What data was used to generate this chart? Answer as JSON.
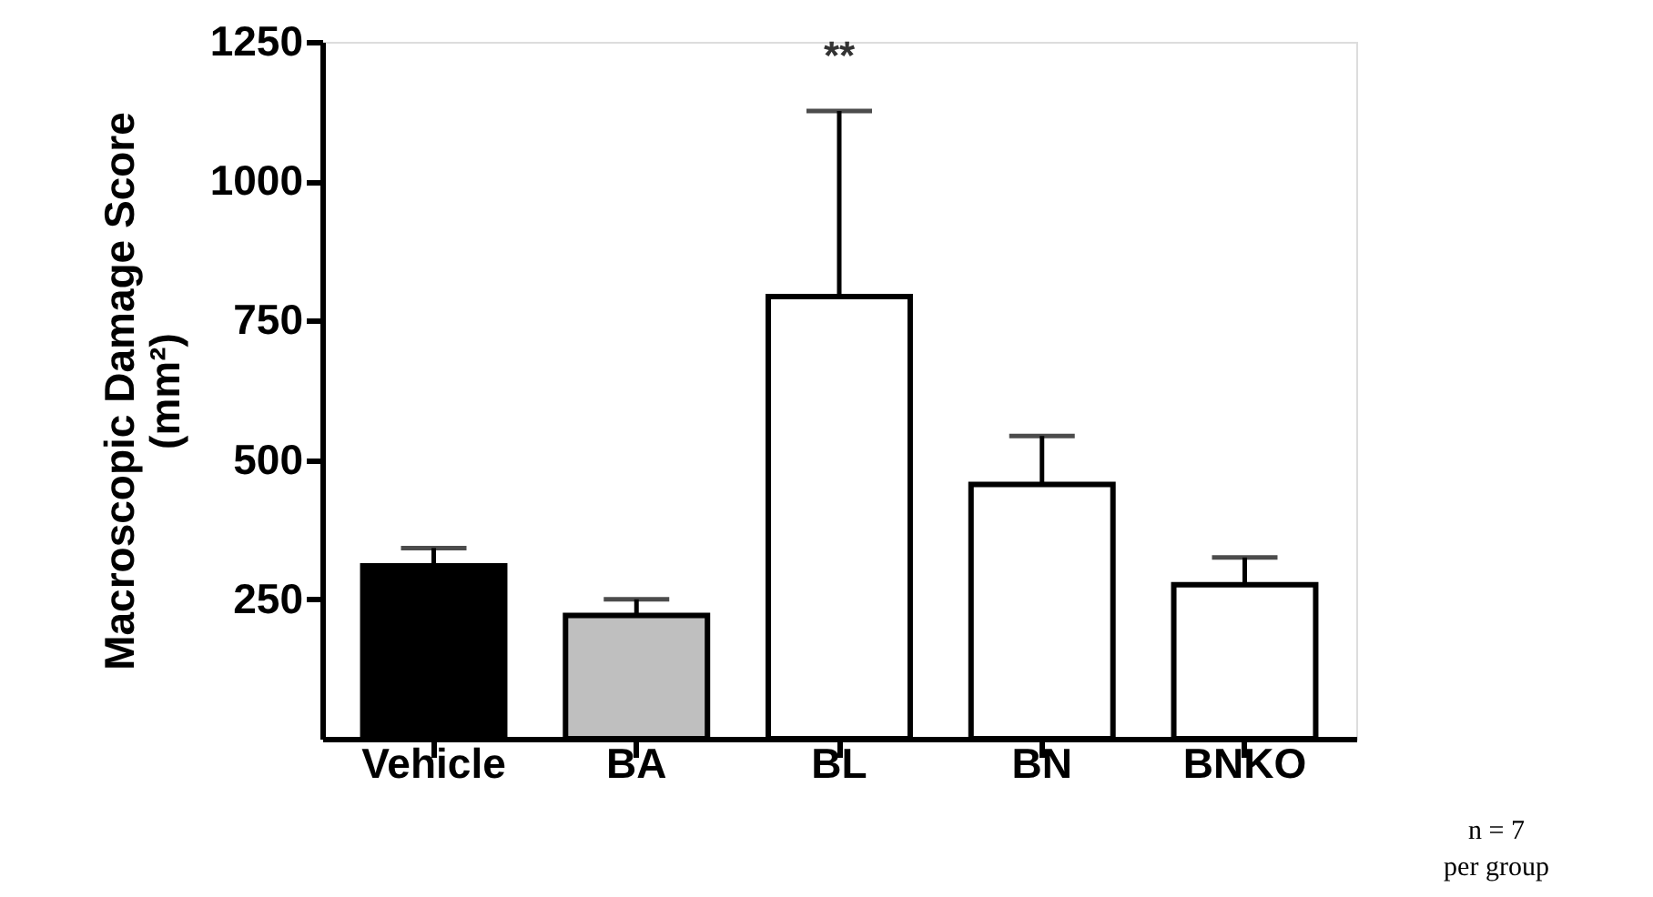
{
  "chart_data": {
    "type": "bar",
    "ylabel": "Macroscopic Damage Score\n(mm²)",
    "categories": [
      "Vehicle",
      "BA",
      "BL",
      "BN",
      "BNKO"
    ],
    "values": [
      310,
      221,
      793,
      456,
      276
    ],
    "colors": [
      "#000000",
      "#bfbfbf",
      "#ffffff",
      "#ffffff",
      "#ffffff"
    ],
    "errors": [
      [
        310,
        342
      ],
      [
        221,
        250
      ],
      [
        793,
        1126
      ],
      [
        456,
        543
      ],
      [
        276,
        325
      ]
    ],
    "ylim": [
      0,
      1250
    ],
    "yticks": [
      250,
      500,
      750,
      1000,
      1250
    ],
    "grid": false,
    "annotations": [
      "**",
      "n = 7\nper group"
    ]
  }
}
